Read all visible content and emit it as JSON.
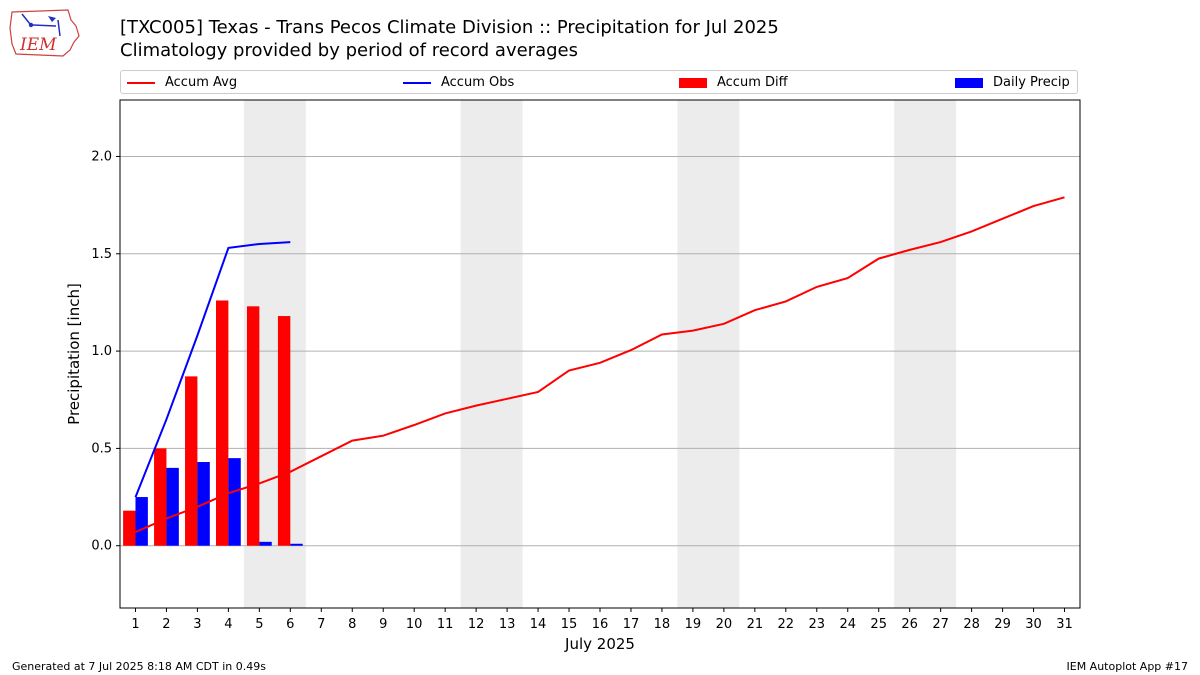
{
  "title_line1": "[TXC005] Texas - Trans Pecos Climate Division :: Precipitation for Jul 2025",
  "title_line2": "Climatology provided by period of record averages",
  "logo_text": "IEM",
  "legend": {
    "accum_avg": "Accum Avg",
    "accum_obs": "Accum Obs",
    "accum_diff": "Accum Diff",
    "daily_precip": "Daily Precip"
  },
  "footer": {
    "left": "Generated at 7 Jul 2025 8:18 AM CDT in 0.49s",
    "right": "IEM Autoplot App #17"
  },
  "colors": {
    "accum_avg": "#ff0000",
    "accum_obs": "#0000ff",
    "accum_diff": "#ff0000",
    "daily_precip": "#0000ff",
    "weekend_shade": "#ececec",
    "grid": "#b0b0b0"
  },
  "chart_data": {
    "type": "bar",
    "xlabel": "July 2025",
    "ylabel": "Precipitation [inch]",
    "xlim": [
      0.5,
      31.5
    ],
    "ylim": [
      -0.32,
      2.29
    ],
    "yticks": [
      0.0,
      0.5,
      1.0,
      1.5,
      2.0
    ],
    "ytick_labels": [
      "0.0",
      "0.5",
      "1.0",
      "1.5",
      "2.0"
    ],
    "x": [
      1,
      2,
      3,
      4,
      5,
      6,
      7,
      8,
      9,
      10,
      11,
      12,
      13,
      14,
      15,
      16,
      17,
      18,
      19,
      20,
      21,
      22,
      23,
      24,
      25,
      26,
      27,
      28,
      29,
      30,
      31
    ],
    "grid": "horizontal",
    "legend_position": "top",
    "weekend_shading": [
      [
        4.5,
        6.5
      ],
      [
        11.5,
        13.5
      ],
      [
        18.5,
        20.5
      ],
      [
        25.5,
        27.5
      ]
    ],
    "series": [
      {
        "name": "Accum Avg",
        "type": "line",
        "x": [
          1,
          2,
          3,
          4,
          5,
          6,
          7,
          8,
          9,
          10,
          11,
          12,
          13,
          14,
          15,
          16,
          17,
          18,
          19,
          20,
          21,
          22,
          23,
          24,
          25,
          26,
          27,
          28,
          29,
          30,
          31
        ],
        "values": [
          0.07,
          0.14,
          0.2,
          0.27,
          0.32,
          0.38,
          0.46,
          0.54,
          0.565,
          0.62,
          0.68,
          0.72,
          0.755,
          0.79,
          0.9,
          0.94,
          1.005,
          1.085,
          1.105,
          1.14,
          1.21,
          1.255,
          1.33,
          1.375,
          1.475,
          1.52,
          1.56,
          1.615,
          1.68,
          1.745,
          1.79
        ]
      },
      {
        "name": "Accum Obs",
        "type": "line",
        "x": [
          1,
          2,
          3,
          4,
          5,
          6
        ],
        "values": [
          0.25,
          0.65,
          1.08,
          1.53,
          1.55,
          1.56
        ]
      },
      {
        "name": "Accum Diff",
        "type": "bar",
        "x": [
          1,
          2,
          3,
          4,
          5,
          6
        ],
        "values": [
          0.18,
          0.5,
          0.87,
          1.26,
          1.23,
          1.18
        ]
      },
      {
        "name": "Daily Precip",
        "type": "bar",
        "x": [
          1,
          2,
          3,
          4,
          5,
          6
        ],
        "values": [
          0.25,
          0.4,
          0.43,
          0.45,
          0.02,
          0.01
        ]
      }
    ]
  }
}
